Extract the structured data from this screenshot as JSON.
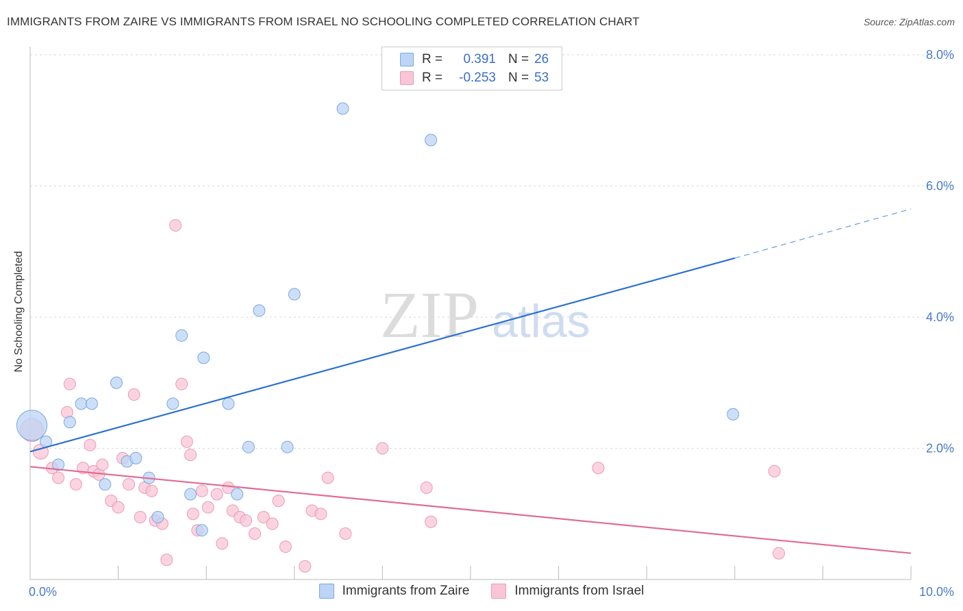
{
  "title": "IMMIGRANTS FROM ZAIRE VS IMMIGRANTS FROM ISRAEL NO SCHOOLING COMPLETED CORRELATION CHART",
  "source": "Source: ZipAtlas.com",
  "watermark": {
    "zip": "ZIP",
    "atlas": "atlas"
  },
  "legend": {
    "rows": [
      {
        "r_label": "R =",
        "r_value": "0.391",
        "n_label": "N =",
        "n_value": "26"
      },
      {
        "r_label": "R =",
        "r_value": "-0.253",
        "n_label": "N =",
        "n_value": "53"
      }
    ]
  },
  "colors": {
    "zaire_fill": "#bcd4f5",
    "zaire_stroke": "#7aa7e0",
    "zaire_line": "#2a6fd0",
    "israel_fill": "#f9c6d6",
    "israel_stroke": "#ec9ab5",
    "israel_line": "#e06b95",
    "axis_text": "#4a7bc8"
  },
  "chart_data": {
    "type": "scatter",
    "title": "IMMIGRANTS FROM ZAIRE VS IMMIGRANTS FROM ISRAEL NO SCHOOLING COMPLETED CORRELATION CHART",
    "xlabel": "",
    "ylabel": "No Schooling Completed",
    "xlim": [
      0,
      10
    ],
    "ylim": [
      0,
      8
    ],
    "x_ticks": [
      {
        "value": 0,
        "label": "0.0%"
      },
      {
        "value": 10,
        "label": "10.0%"
      }
    ],
    "y_ticks": [
      {
        "value": 2,
        "label": "2.0%"
      },
      {
        "value": 4,
        "label": "4.0%"
      },
      {
        "value": 6,
        "label": "6.0%"
      },
      {
        "value": 8,
        "label": "8.0%"
      }
    ],
    "series": [
      {
        "name": "Immigrants from Zaire",
        "r": 0.391,
        "n": 26,
        "points": [
          [
            0.02,
            2.35,
            2.6
          ],
          [
            0.18,
            2.1,
            1
          ],
          [
            0.32,
            1.75,
            1
          ],
          [
            0.45,
            2.4,
            1
          ],
          [
            0.58,
            2.68,
            1
          ],
          [
            0.7,
            2.68,
            1
          ],
          [
            0.85,
            1.45,
            1
          ],
          [
            0.98,
            3.0,
            1
          ],
          [
            1.1,
            1.8,
            1
          ],
          [
            1.2,
            1.85,
            1
          ],
          [
            1.35,
            1.55,
            1
          ],
          [
            1.45,
            0.95,
            1
          ],
          [
            1.62,
            2.68,
            1
          ],
          [
            1.72,
            3.72,
            1
          ],
          [
            1.82,
            1.3,
            1
          ],
          [
            1.95,
            0.75,
            1
          ],
          [
            1.97,
            3.38,
            1
          ],
          [
            2.25,
            2.68,
            1
          ],
          [
            2.35,
            1.3,
            1
          ],
          [
            2.48,
            2.02,
            1
          ],
          [
            2.6,
            4.1,
            1
          ],
          [
            2.92,
            2.02,
            1
          ],
          [
            3.0,
            4.35,
            1
          ],
          [
            3.55,
            7.18,
            1
          ],
          [
            4.55,
            6.7,
            1
          ],
          [
            7.98,
            2.52,
            1
          ]
        ],
        "trend": {
          "x0": 0,
          "y0": 1.95,
          "x1": 8.0,
          "y1": 4.9,
          "dashed_to_x": 10,
          "dashed_to_y": 5.65
        }
      },
      {
        "name": "Immigrants from Israel",
        "r": -0.253,
        "n": 53,
        "points": [
          [
            0.02,
            2.28,
            2.0
          ],
          [
            0.12,
            1.95,
            1.3
          ],
          [
            0.25,
            1.7,
            1
          ],
          [
            0.32,
            1.55,
            1
          ],
          [
            0.42,
            2.55,
            1
          ],
          [
            0.45,
            2.98,
            1
          ],
          [
            0.52,
            1.45,
            1
          ],
          [
            0.6,
            1.7,
            1
          ],
          [
            0.68,
            2.05,
            1
          ],
          [
            0.72,
            1.65,
            1
          ],
          [
            0.78,
            1.6,
            1
          ],
          [
            0.82,
            1.75,
            1
          ],
          [
            0.92,
            1.2,
            1
          ],
          [
            1.0,
            1.1,
            1
          ],
          [
            1.05,
            1.85,
            1
          ],
          [
            1.12,
            1.45,
            1
          ],
          [
            1.18,
            2.82,
            1
          ],
          [
            1.25,
            0.95,
            1
          ],
          [
            1.3,
            1.4,
            1
          ],
          [
            1.38,
            1.35,
            1
          ],
          [
            1.42,
            0.9,
            1
          ],
          [
            1.5,
            0.85,
            1
          ],
          [
            1.55,
            0.3,
            1
          ],
          [
            1.65,
            5.4,
            1
          ],
          [
            1.72,
            2.98,
            1
          ],
          [
            1.78,
            2.1,
            1
          ],
          [
            1.82,
            1.9,
            1
          ],
          [
            1.85,
            1.0,
            1
          ],
          [
            1.9,
            0.75,
            1
          ],
          [
            1.95,
            1.35,
            1
          ],
          [
            2.02,
            1.1,
            1
          ],
          [
            2.12,
            1.3,
            1
          ],
          [
            2.18,
            0.55,
            1
          ],
          [
            2.25,
            1.4,
            1
          ],
          [
            2.3,
            1.05,
            1
          ],
          [
            2.38,
            0.95,
            1
          ],
          [
            2.45,
            0.9,
            1
          ],
          [
            2.55,
            0.7,
            1
          ],
          [
            2.65,
            0.95,
            1
          ],
          [
            2.75,
            0.85,
            1
          ],
          [
            2.82,
            1.2,
            1
          ],
          [
            2.9,
            0.5,
            1
          ],
          [
            3.12,
            0.2,
            1
          ],
          [
            3.2,
            1.05,
            1
          ],
          [
            3.3,
            1.0,
            1
          ],
          [
            3.38,
            1.55,
            1
          ],
          [
            3.58,
            0.7,
            1
          ],
          [
            4.0,
            2.0,
            1
          ],
          [
            4.5,
            1.4,
            1
          ],
          [
            4.55,
            0.88,
            1
          ],
          [
            6.45,
            1.7,
            1
          ],
          [
            8.45,
            1.65,
            1
          ],
          [
            8.5,
            0.4,
            1
          ]
        ],
        "trend": {
          "x0": 0,
          "y0": 1.72,
          "x1": 10,
          "y1": 0.4
        }
      }
    ]
  },
  "bottom_legend": [
    "Immigrants from Zaire",
    "Immigrants from Israel"
  ]
}
